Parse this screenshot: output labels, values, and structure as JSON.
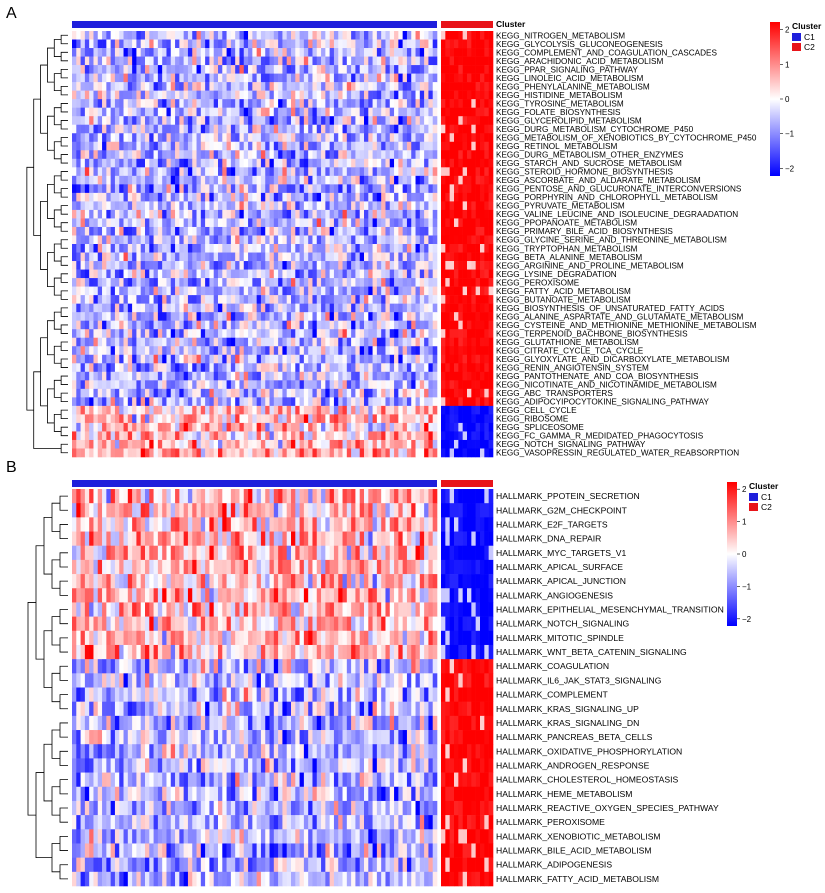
{
  "chart_data": [
    {
      "type": "heatmap",
      "panel_label": "A",
      "annotation_title": "Cluster",
      "legend_groups": [
        "C1",
        "C2"
      ],
      "group_colors": {
        "C1": "#1f1fdc",
        "C2": "#e8141a"
      },
      "color_scale": {
        "min": -2,
        "max": 2,
        "ticks": [
          2,
          1,
          0,
          -1,
          -2
        ],
        "low": "#0000ff",
        "mid": "#ffffff",
        "high": "#ff0000"
      },
      "columns": {
        "C1": 85,
        "C2": 12
      },
      "rows": [
        "KEGG_NITROGEN_METABOLISM",
        "KEGG_GLYCOLYSIS_GLUCONEOGENESIS",
        "KEGG_COMPLEMENT_AND_COAGULATION_CASCADES",
        "KEGG_ARACHIDONIC_ACID_METABOLISM",
        "KEGG_PPAR_SIGNALING_PATHWAY",
        "KEGG_LINOLEIC_ACID_METABOLISM",
        "KEGG_PHENYLALANINE_METABOLISM",
        "KEGG_HISTIDINE_METABOLISM",
        "KEGG_TYROSINE_METABOLISM",
        "KEGG_FOLATE_BIOSYNTHESIS",
        "KEGG_GLYCEROLIPID_METABOLISM",
        "KEGG_DURG_METABOLISM_CYTOCHROME_P450",
        "KEGG_METABOLISM_OF_XENOBIOTICS_BY_CYTOCHROME_P450",
        "KEGG_RETINOL_METABOLISM",
        "KEGG_DURG_METABOLISM_OTHER_ENZYMES",
        "KEGG_STARCH_AND_SUCROSE_METABOLISM",
        "KEGG_STEROID_HORMONE_BIOSYNTHESIS",
        "KEGG_ASCORBATE_AND_ALDARATE_METABOLISM",
        "KEGG_PENTOSE_AND_GLUCURONATE_INTERCONVERSIONS",
        "KEGG_PORPHYRIN_AND_CHLOROPHYLL_METABOLISM",
        "KEGG_PYRUVATE_METABOLISM",
        "KEGG_VALINE_LEUCINE_AND_ISOLEUCINE_DEGRAADATION",
        "KEGG_PPOPANOATE_METABOLISM",
        "KEGG_PRIMARY_BILE_ACID_BIOSYNTHESIS",
        "KEGG_GLYCINE_SERINE_AND_THREONINE_METABOLISM",
        "KEGG_TRYPTOPHAN_METABOLISM",
        "KEGG_BETA_ALANINE_METABOLISM",
        "KEGG_ARGININE_AND_PROLINE_METABOLISM",
        "KEGG_LYSINE_DEGRADATION",
        "KEGG_PEROXISOME",
        "KEGG_FATTY_ACID_METABOLISM",
        "KEGG_BUTANOATE_METABOLISM",
        "KEGG_BIOSYNTHESIS_OF_UNSATURATED_FATTY_ACIDS",
        "KEGG_ALANINE_ASPARTATE_AND_GLUTAMATE_METABOLISM",
        "KEGG_CYSTEINE_AND_METHIONINE_METHIONINE_METABOLISM",
        "KEGG_TERPENOID_BACHBONE_BIOSYNTHESIS",
        "KEGG_GLUTATHIONE_METABOLISM",
        "KEGG_CITRATE_CYCLE_TCA_CYCLE",
        "KEGG_GLYOXYLATE_AND_DICARBOXYLATE_METABOLISM",
        "KEGG_RENIN_ANGIOTENSIN_SYSTEM",
        "KEGG_PANTOTHENATE_AND_COA_BIOSYNTHESIS",
        "KEGG_NICOTINATE_AND_NICOTINAMIDE_METABOLISM",
        "KEGG_ABC_TRANSPORTERS",
        "KEGG_ADIPOCYIPOCYTOKINE_SIGNALING_PATHWAY",
        "KEGG_CELL_CYCLE",
        "KEGG_RIBOSOME",
        "KEGG_SPLICEOSOME",
        "KEGG_FC_GAMMA_R_MEDIDATED_PHAGOCYTOSIS",
        "KEGG_NOTCH_SIGNALING_PATHWAY",
        "KEGG_VASOPRESSIN_REGULATED_WATER_REABSORPTION"
      ],
      "row_trend_C2": [
        2,
        2,
        2,
        2,
        2,
        2,
        2,
        2,
        2,
        2,
        2,
        2,
        2,
        2,
        2,
        2,
        2,
        2,
        2,
        2,
        2,
        2,
        2,
        2,
        2,
        2,
        2,
        2,
        2,
        2,
        2,
        2,
        2,
        2,
        2,
        2,
        2,
        2,
        2,
        2,
        2,
        2,
        2,
        2,
        -2,
        -2,
        -2,
        -2,
        -2,
        -2
      ]
    },
    {
      "type": "heatmap",
      "panel_label": "B",
      "annotation_title": "Cluster",
      "legend_groups": [
        "C1",
        "C2"
      ],
      "group_colors": {
        "C1": "#1f1fdc",
        "C2": "#e8141a"
      },
      "color_scale": {
        "min": -2,
        "max": 2,
        "ticks": [
          2,
          1,
          0,
          -1,
          -2
        ],
        "low": "#0000ff",
        "mid": "#ffffff",
        "high": "#ff0000"
      },
      "columns": {
        "C1": 85,
        "C2": 12
      },
      "rows": [
        "HALLMARK_PPOTEIN_SECRETION",
        "HALLMARK_G2M_CHECKPOINT",
        "HALLMARK_E2F_TARGETS",
        "HALLMARK_DNA_REPAIR",
        "HALLMARK_MYC_TARGETS_V1",
        "HALLMARK_APICAL_SURFACE",
        "HALLMARK_APICAL_JUNCTION",
        "HALLMARK_ANGIOGENESIS",
        "HALLMARK_EPITHELIAL_MESENCHYMAL_TRANSITION",
        "HALLMARK_NOTCH_SIGNALING",
        "HALLMARK_MITOTIC_SPINDLE",
        "HALLMARK_WNT_BETA_CATENIN_SIGNALING",
        "HALLMARK_COAGULATION",
        "HALLMARK_IL6_JAK_STAT3_SIGNALING",
        "HALLMARK_COMPLEMENT",
        "HALLMARK_KRAS_SIGNALING_UP",
        "HALLMARK_KRAS_SIGNALING_DN",
        "HALLMARK_PANCREAS_BETA_CELLS",
        "HALLMARK_OXIDATIVE_PHOSPHORYLATION",
        "HALLMARK_ANDROGEN_RESPONSE",
        "HALLMARK_CHOLESTEROL_HOMEOSTASIS",
        "HALLMARK_HEME_METABOLISM",
        "HALLMARK_REACTIVE_OXYGEN_SPECIES_PATHWAY",
        "HALLMARK_PEROXISOME",
        "HALLMARK_XENOBIOTIC_METABOLISM",
        "HALLMARK_BILE_ACID_METABOLISM",
        "HALLMARK_ADIPOGENESIS",
        "HALLMARK_FATTY_ACID_METABOLISM"
      ],
      "row_trend_C2": [
        -2,
        -2,
        -2,
        -2,
        -2,
        -2,
        -2,
        -2,
        -2,
        -2,
        -2,
        -2,
        2,
        2,
        2,
        2,
        2,
        2,
        2,
        2,
        2,
        2,
        2,
        2,
        2,
        2,
        2,
        2
      ]
    }
  ]
}
